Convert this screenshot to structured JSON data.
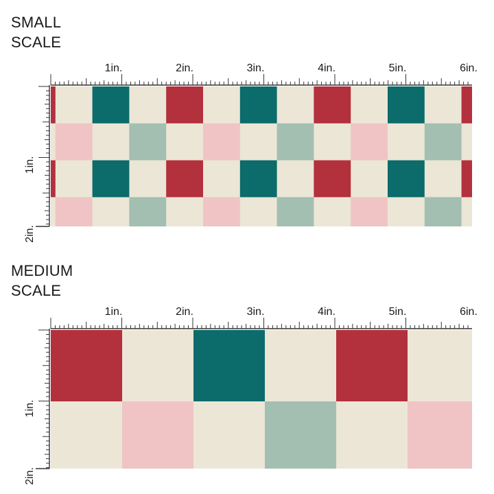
{
  "sections": [
    {
      "title_line1": "SMALL",
      "title_line2": "SCALE",
      "scale": "small",
      "h_ruler_labels": [
        "1in.",
        "2in.",
        "3in.",
        "4in.",
        "5in.",
        "6in."
      ],
      "v_ruler_labels": [
        "1in.",
        "2in."
      ]
    },
    {
      "title_line1": "MEDIUM",
      "title_line2": "SCALE",
      "scale": "medium",
      "h_ruler_labels": [
        "1in.",
        "2in.",
        "3in.",
        "4in.",
        "5in.",
        "6in."
      ],
      "v_ruler_labels": [
        "1in.",
        "2in."
      ]
    }
  ],
  "colors": {
    "red": "#b3303d",
    "teal": "#0c6b6b",
    "cream": "#ebe6d6",
    "pink": "#f0c4c4",
    "sage": "#a3bfb2",
    "ruler": "#333333"
  },
  "pattern": {
    "row_a": [
      "red",
      "cream",
      "teal",
      "cream"
    ],
    "row_b": [
      "cream",
      "pink",
      "cream",
      "sage"
    ]
  }
}
